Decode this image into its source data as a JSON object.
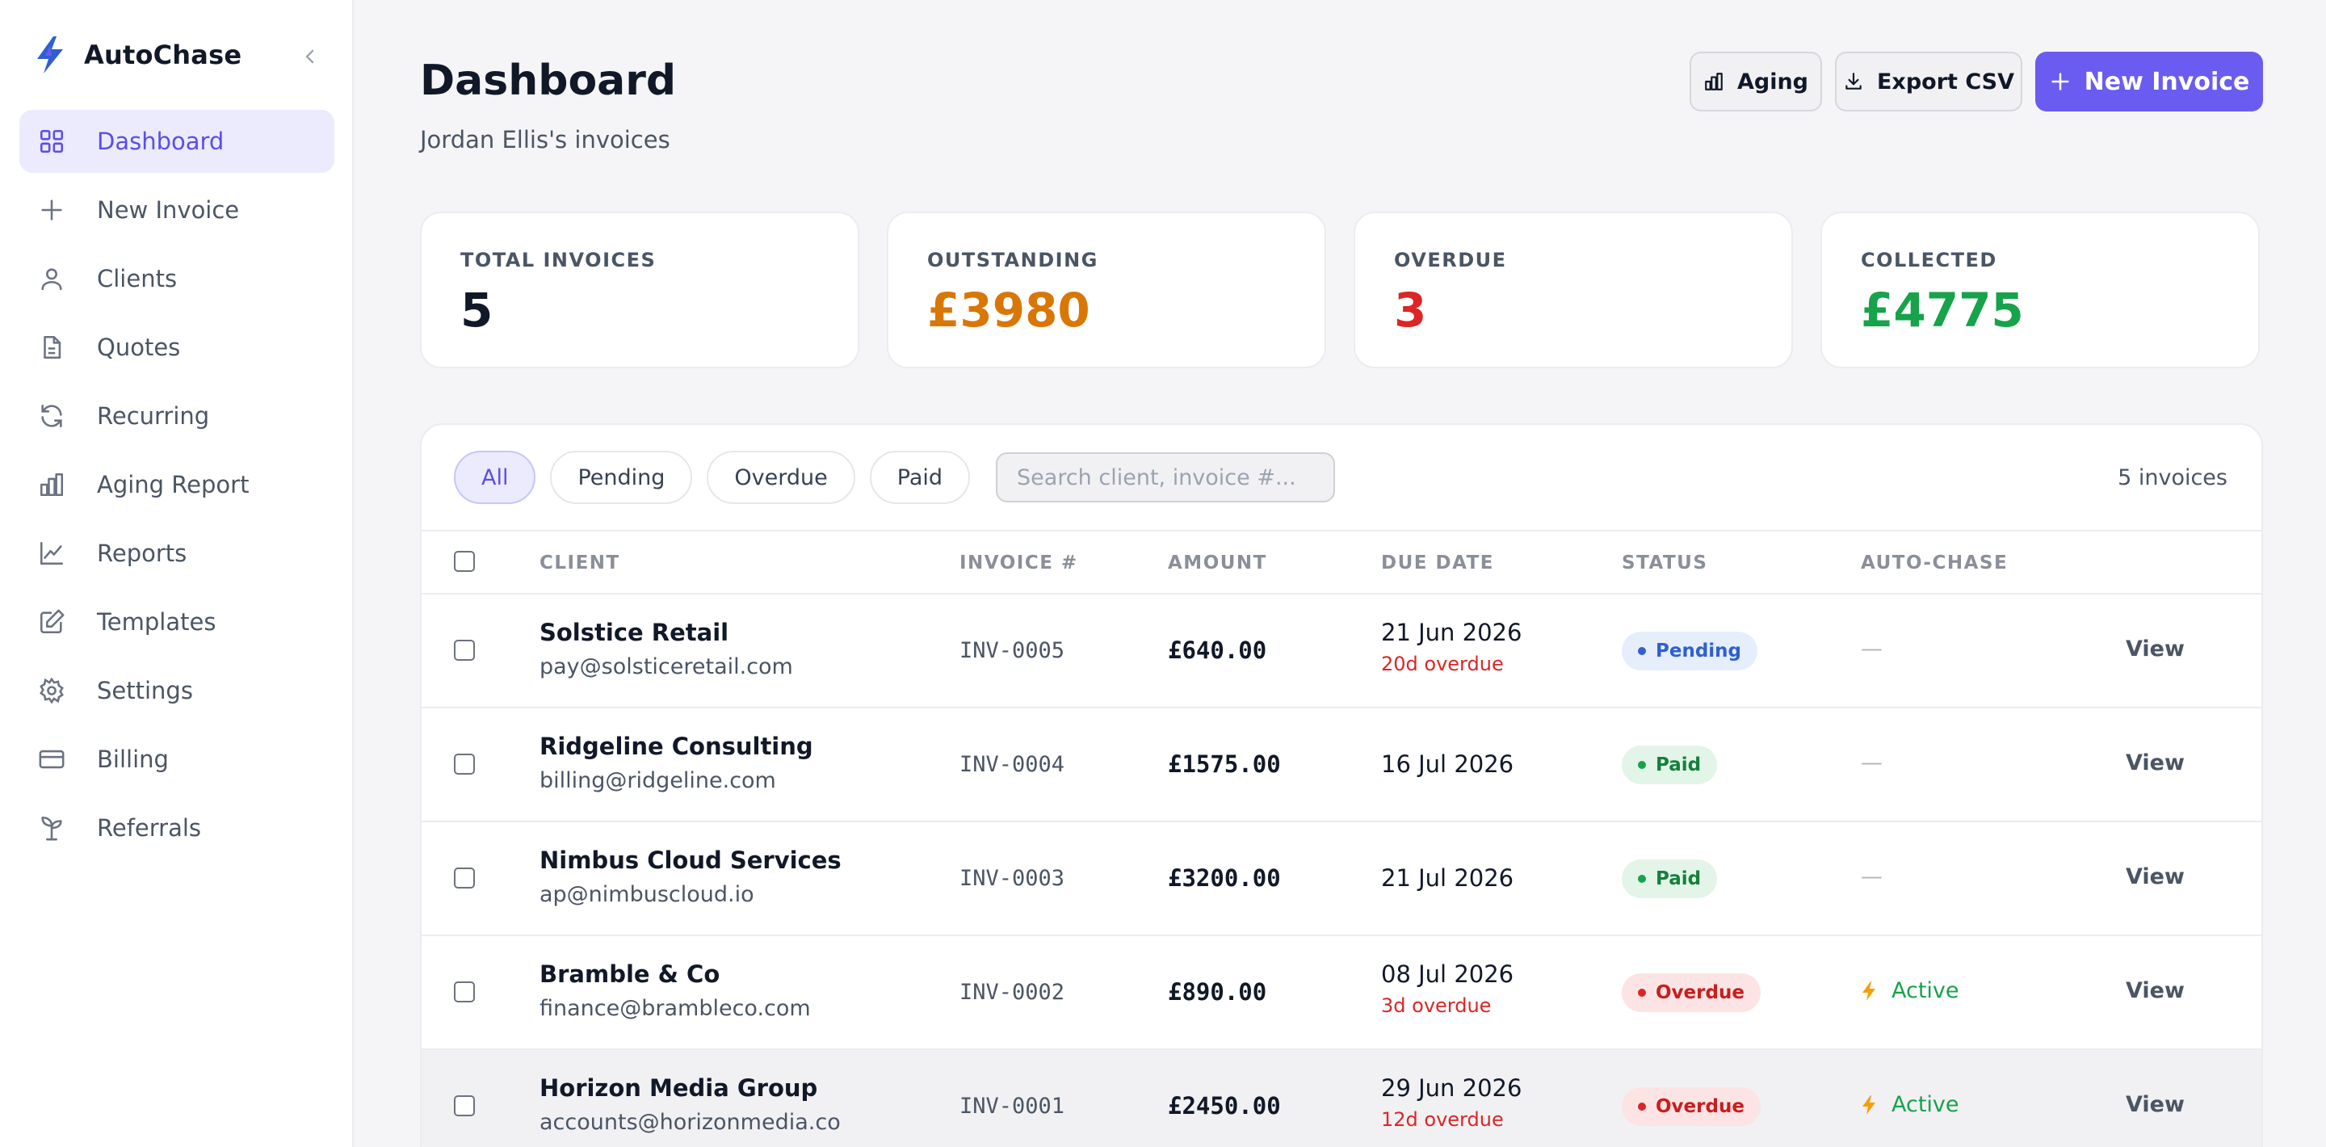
{
  "app": {
    "name": "AutoChase",
    "accent": "#6a5cf0"
  },
  "sidebar": {
    "items": [
      {
        "label": "Dashboard",
        "icon": "grid-icon",
        "active": true
      },
      {
        "label": "New Invoice",
        "icon": "plus-icon"
      },
      {
        "label": "Clients",
        "icon": "user-icon"
      },
      {
        "label": "Quotes",
        "icon": "document-icon"
      },
      {
        "label": "Recurring",
        "icon": "refresh-icon"
      },
      {
        "label": "Aging Report",
        "icon": "bar-chart-icon"
      },
      {
        "label": "Reports",
        "icon": "line-chart-icon"
      },
      {
        "label": "Templates",
        "icon": "edit-icon"
      },
      {
        "label": "Settings",
        "icon": "gear-icon"
      },
      {
        "label": "Billing",
        "icon": "credit-card-icon"
      },
      {
        "label": "Referrals",
        "icon": "sprout-icon"
      }
    ]
  },
  "header": {
    "title": "Dashboard",
    "subtitle": "Jordan Ellis's invoices",
    "aging_label": "Aging",
    "export_label": "Export CSV",
    "new_invoice_label": "New Invoice"
  },
  "stats": [
    {
      "label": "TOTAL INVOICES",
      "value": "5",
      "color": "#111827"
    },
    {
      "label": "OUTSTANDING",
      "value": "£3980",
      "color": "#d97706"
    },
    {
      "label": "OVERDUE",
      "value": "3",
      "color": "#dc2626"
    },
    {
      "label": "COLLECTED",
      "value": "£4775",
      "color": "#16a34a"
    }
  ],
  "filters": {
    "chips": [
      "All",
      "Pending",
      "Overdue",
      "Paid"
    ],
    "active": "All",
    "search_placeholder": "Search client, invoice #...",
    "count": "5 invoices"
  },
  "table": {
    "columns": {
      "client": "CLIENT",
      "invoice": "INVOICE #",
      "amount": "AMOUNT",
      "due": "DUE DATE",
      "status": "STATUS",
      "autochase": "AUTO-CHASE"
    },
    "rows": [
      {
        "client": "Solstice Retail",
        "email": "pay@solsticeretail.com",
        "invoice": "INV-0005",
        "amount": "£640.00",
        "due": "21 Jun 2026",
        "due_note": "20d overdue",
        "status": "Pending",
        "status_type": "pending",
        "autochase": "—",
        "view": "View"
      },
      {
        "client": "Ridgeline Consulting",
        "email": "billing@ridgeline.com",
        "invoice": "INV-0004",
        "amount": "£1575.00",
        "due": "16 Jul 2026",
        "due_note": "",
        "status": "Paid",
        "status_type": "paid",
        "autochase": "—",
        "view": "View"
      },
      {
        "client": "Nimbus Cloud Services",
        "email": "ap@nimbuscloud.io",
        "invoice": "INV-0003",
        "amount": "£3200.00",
        "due": "21 Jul 2026",
        "due_note": "",
        "status": "Paid",
        "status_type": "paid",
        "autochase": "—",
        "view": "View"
      },
      {
        "client": "Bramble & Co",
        "email": "finance@brambleco.com",
        "invoice": "INV-0002",
        "amount": "£890.00",
        "due": "08 Jul 2026",
        "due_note": "3d overdue",
        "status": "Overdue",
        "status_type": "overdue",
        "autochase": "Active",
        "view": "View"
      },
      {
        "client": "Horizon Media Group",
        "email": "accounts@horizonmedia.co",
        "invoice": "INV-0001",
        "amount": "£2450.00",
        "due": "29 Jun 2026",
        "due_note": "12d overdue",
        "status": "Overdue",
        "status_type": "overdue",
        "autochase": "Active",
        "view": "View"
      }
    ]
  }
}
